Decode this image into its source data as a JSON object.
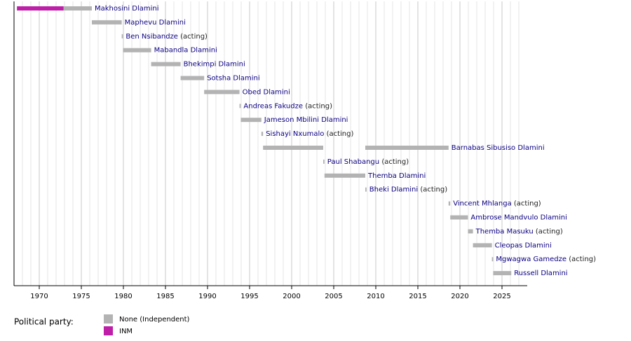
{
  "chart_data": {
    "type": "timeline",
    "xlim": [
      1967,
      2028
    ],
    "xticks": [
      1970,
      1975,
      1980,
      1985,
      1990,
      1995,
      2000,
      2005,
      2010,
      2015,
      2020,
      2025
    ],
    "x_minor_ticks": [
      1968,
      1969,
      1970,
      1971,
      1972,
      1973,
      1974,
      1975,
      1976,
      1977,
      1978,
      1979,
      1980,
      1981,
      1982,
      1983,
      1984,
      1985,
      1986,
      1987,
      1988,
      1989,
      1990,
      1991,
      1992,
      1993,
      1994,
      1995,
      1996,
      1997,
      1998,
      1999,
      2000,
      2001,
      2002,
      2003,
      2004,
      2005,
      2006,
      2007,
      2008,
      2009,
      2010,
      2011,
      2012,
      2013,
      2014,
      2015,
      2016,
      2017,
      2018,
      2019,
      2020,
      2021,
      2022,
      2023,
      2024,
      2025,
      2026,
      2027
    ],
    "grid": true,
    "legend_title": "Political party:",
    "parties": [
      {
        "name": "None (Independent)",
        "color": "#b3b3b3"
      },
      {
        "name": "INM",
        "color": "#be1ea8"
      }
    ],
    "rows": [
      {
        "name": "Makhosini Dlamini",
        "segments": [
          {
            "start": 1967.35,
            "end": 1972.9,
            "party": "INM"
          },
          {
            "start": 1972.9,
            "end": 1976.25,
            "party": "None (Independent)"
          }
        ]
      },
      {
        "name": "Maphevu Dlamini",
        "segments": [
          {
            "start": 1976.25,
            "end": 1979.8,
            "party": "None (Independent)"
          }
        ]
      },
      {
        "name": "Ben Nsibandze",
        "note": "(acting)",
        "segments": [
          {
            "start": 1979.8,
            "end": 1979.95,
            "party": "None (Independent)"
          }
        ]
      },
      {
        "name": "Mabandla Dlamini",
        "segments": [
          {
            "start": 1979.95,
            "end": 1983.3,
            "party": "None (Independent)"
          }
        ]
      },
      {
        "name": "Bhekimpi Dlamini",
        "segments": [
          {
            "start": 1983.3,
            "end": 1986.8,
            "party": "None (Independent)"
          }
        ]
      },
      {
        "name": "Sotsha Dlamini",
        "segments": [
          {
            "start": 1986.8,
            "end": 1989.6,
            "party": "None (Independent)"
          }
        ]
      },
      {
        "name": "Obed Dlamini",
        "segments": [
          {
            "start": 1989.6,
            "end": 1993.8,
            "party": "None (Independent)"
          }
        ]
      },
      {
        "name": "Andreas Fakudze",
        "note": "(acting)",
        "segments": [
          {
            "start": 1993.8,
            "end": 1993.95,
            "party": "None (Independent)"
          }
        ]
      },
      {
        "name": "Jameson Mbilini Dlamini",
        "segments": [
          {
            "start": 1993.95,
            "end": 1996.4,
            "party": "None (Independent)"
          }
        ]
      },
      {
        "name": "Sishayi Nxumalo",
        "note": "(acting)",
        "segments": [
          {
            "start": 1996.4,
            "end": 1996.6,
            "party": "None (Independent)"
          }
        ]
      },
      {
        "name": "Barnabas Sibusiso Dlamini",
        "segments": [
          {
            "start": 1996.6,
            "end": 2003.75,
            "party": "None (Independent)"
          },
          {
            "start": 2008.75,
            "end": 2018.65,
            "party": "None (Independent)"
          }
        ]
      },
      {
        "name": "Paul Shabangu",
        "note": "(acting)",
        "segments": [
          {
            "start": 2003.75,
            "end": 2003.9,
            "party": "None (Independent)"
          }
        ]
      },
      {
        "name": "Themba Dlamini",
        "segments": [
          {
            "start": 2003.9,
            "end": 2008.75,
            "party": "None (Independent)"
          }
        ]
      },
      {
        "name": "Bheki Dlamini",
        "note": "(acting)",
        "segments": [
          {
            "start": 2008.75,
            "end": 2008.9,
            "party": "None (Independent)"
          }
        ]
      },
      {
        "name": "Vincent Mhlanga",
        "note": "(acting)",
        "segments": [
          {
            "start": 2018.65,
            "end": 2018.85,
            "party": "None (Independent)"
          }
        ]
      },
      {
        "name": "Ambrose Mandvulo Dlamini",
        "segments": [
          {
            "start": 2018.85,
            "end": 2020.95,
            "party": "None (Independent)"
          }
        ]
      },
      {
        "name": "Themba Masuku",
        "note": "(acting)",
        "segments": [
          {
            "start": 2020.95,
            "end": 2021.55,
            "party": "None (Independent)"
          }
        ]
      },
      {
        "name": "Cleopas Dlamini",
        "segments": [
          {
            "start": 2021.55,
            "end": 2023.8,
            "party": "None (Independent)"
          }
        ]
      },
      {
        "name": "Mgwagwa Gamedze",
        "note": "(acting)",
        "segments": [
          {
            "start": 2023.8,
            "end": 2023.95,
            "party": "None (Independent)"
          }
        ]
      },
      {
        "name": "Russell Dlamini",
        "segments": [
          {
            "start": 2023.95,
            "end": 2026.1,
            "party": "None (Independent)"
          }
        ]
      }
    ]
  }
}
